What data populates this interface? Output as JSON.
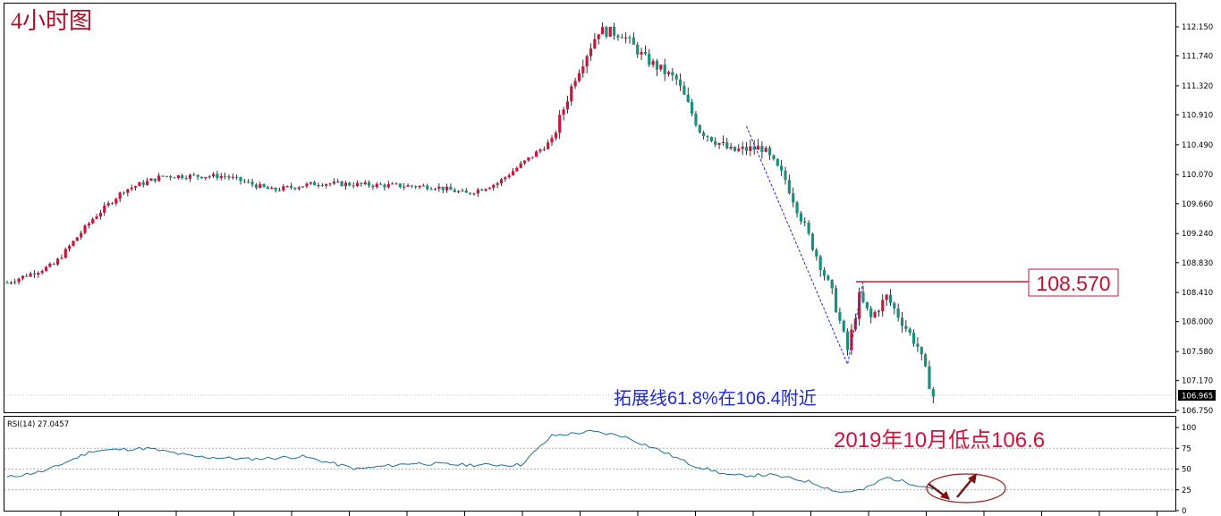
{
  "chart_data": [
    {
      "type": "candlestick",
      "title": "4小时图",
      "y_ticks": [
        "112.150",
        "111.740",
        "111.320",
        "110.910",
        "110.490",
        "110.070",
        "109.660",
        "109.240",
        "108.830",
        "108.410",
        "108.000",
        "107.580",
        "107.170",
        "106.750"
      ],
      "ylim": [
        106.75,
        112.15
      ],
      "current_price": "106.965",
      "grid": false,
      "colors": {
        "up": "#d0133a",
        "down": "#1a8f7e",
        "level": "#d0133a",
        "rsi": "#1c6fa0",
        "trend": "#1f2ad0"
      },
      "close_path": [
        [
          0,
          108.55
        ],
        [
          12,
          108.8
        ],
        [
          22,
          109.45
        ],
        [
          30,
          109.85
        ],
        [
          40,
          110.05
        ],
        [
          56,
          110.05
        ],
        [
          68,
          109.85
        ],
        [
          80,
          109.95
        ],
        [
          96,
          109.92
        ],
        [
          110,
          109.9
        ],
        [
          118,
          109.8
        ],
        [
          126,
          109.95
        ],
        [
          140,
          110.55
        ],
        [
          146,
          111.45
        ],
        [
          152,
          112.1
        ],
        [
          158,
          112.05
        ],
        [
          164,
          111.7
        ],
        [
          172,
          111.4
        ],
        [
          178,
          110.7
        ],
        [
          186,
          110.4
        ],
        [
          194,
          110.45
        ],
        [
          200,
          110.0
        ],
        [
          206,
          109.2
        ],
        [
          212,
          108.4
        ],
        [
          216,
          107.6
        ],
        [
          219,
          108.35
        ],
        [
          222,
          108.05
        ],
        [
          226,
          108.35
        ],
        [
          230,
          108.0
        ],
        [
          234,
          107.65
        ],
        [
          238,
          106.95
        ]
      ],
      "annotations": [
        {
          "text": "拓展线61.8%在106.4附近"
        },
        {
          "text": "2019年10月低点106.6"
        },
        {
          "text": "108.570",
          "level": 108.57
        }
      ]
    },
    {
      "type": "line",
      "label": "RSI(14) 27.0457",
      "y_ticks": [
        "100",
        "75",
        "50",
        "25",
        "0"
      ],
      "ylim": [
        0,
        100
      ],
      "path": [
        [
          0,
          40
        ],
        [
          10,
          48
        ],
        [
          22,
          72
        ],
        [
          36,
          75
        ],
        [
          48,
          65
        ],
        [
          62,
          62
        ],
        [
          76,
          65
        ],
        [
          90,
          50
        ],
        [
          104,
          57
        ],
        [
          118,
          55
        ],
        [
          132,
          55
        ],
        [
          140,
          90
        ],
        [
          150,
          95
        ],
        [
          158,
          90
        ],
        [
          168,
          72
        ],
        [
          176,
          55
        ],
        [
          186,
          42
        ],
        [
          196,
          43
        ],
        [
          206,
          35
        ],
        [
          214,
          22
        ],
        [
          220,
          25
        ],
        [
          226,
          40
        ],
        [
          232,
          33
        ],
        [
          238,
          27
        ]
      ]
    }
  ]
}
